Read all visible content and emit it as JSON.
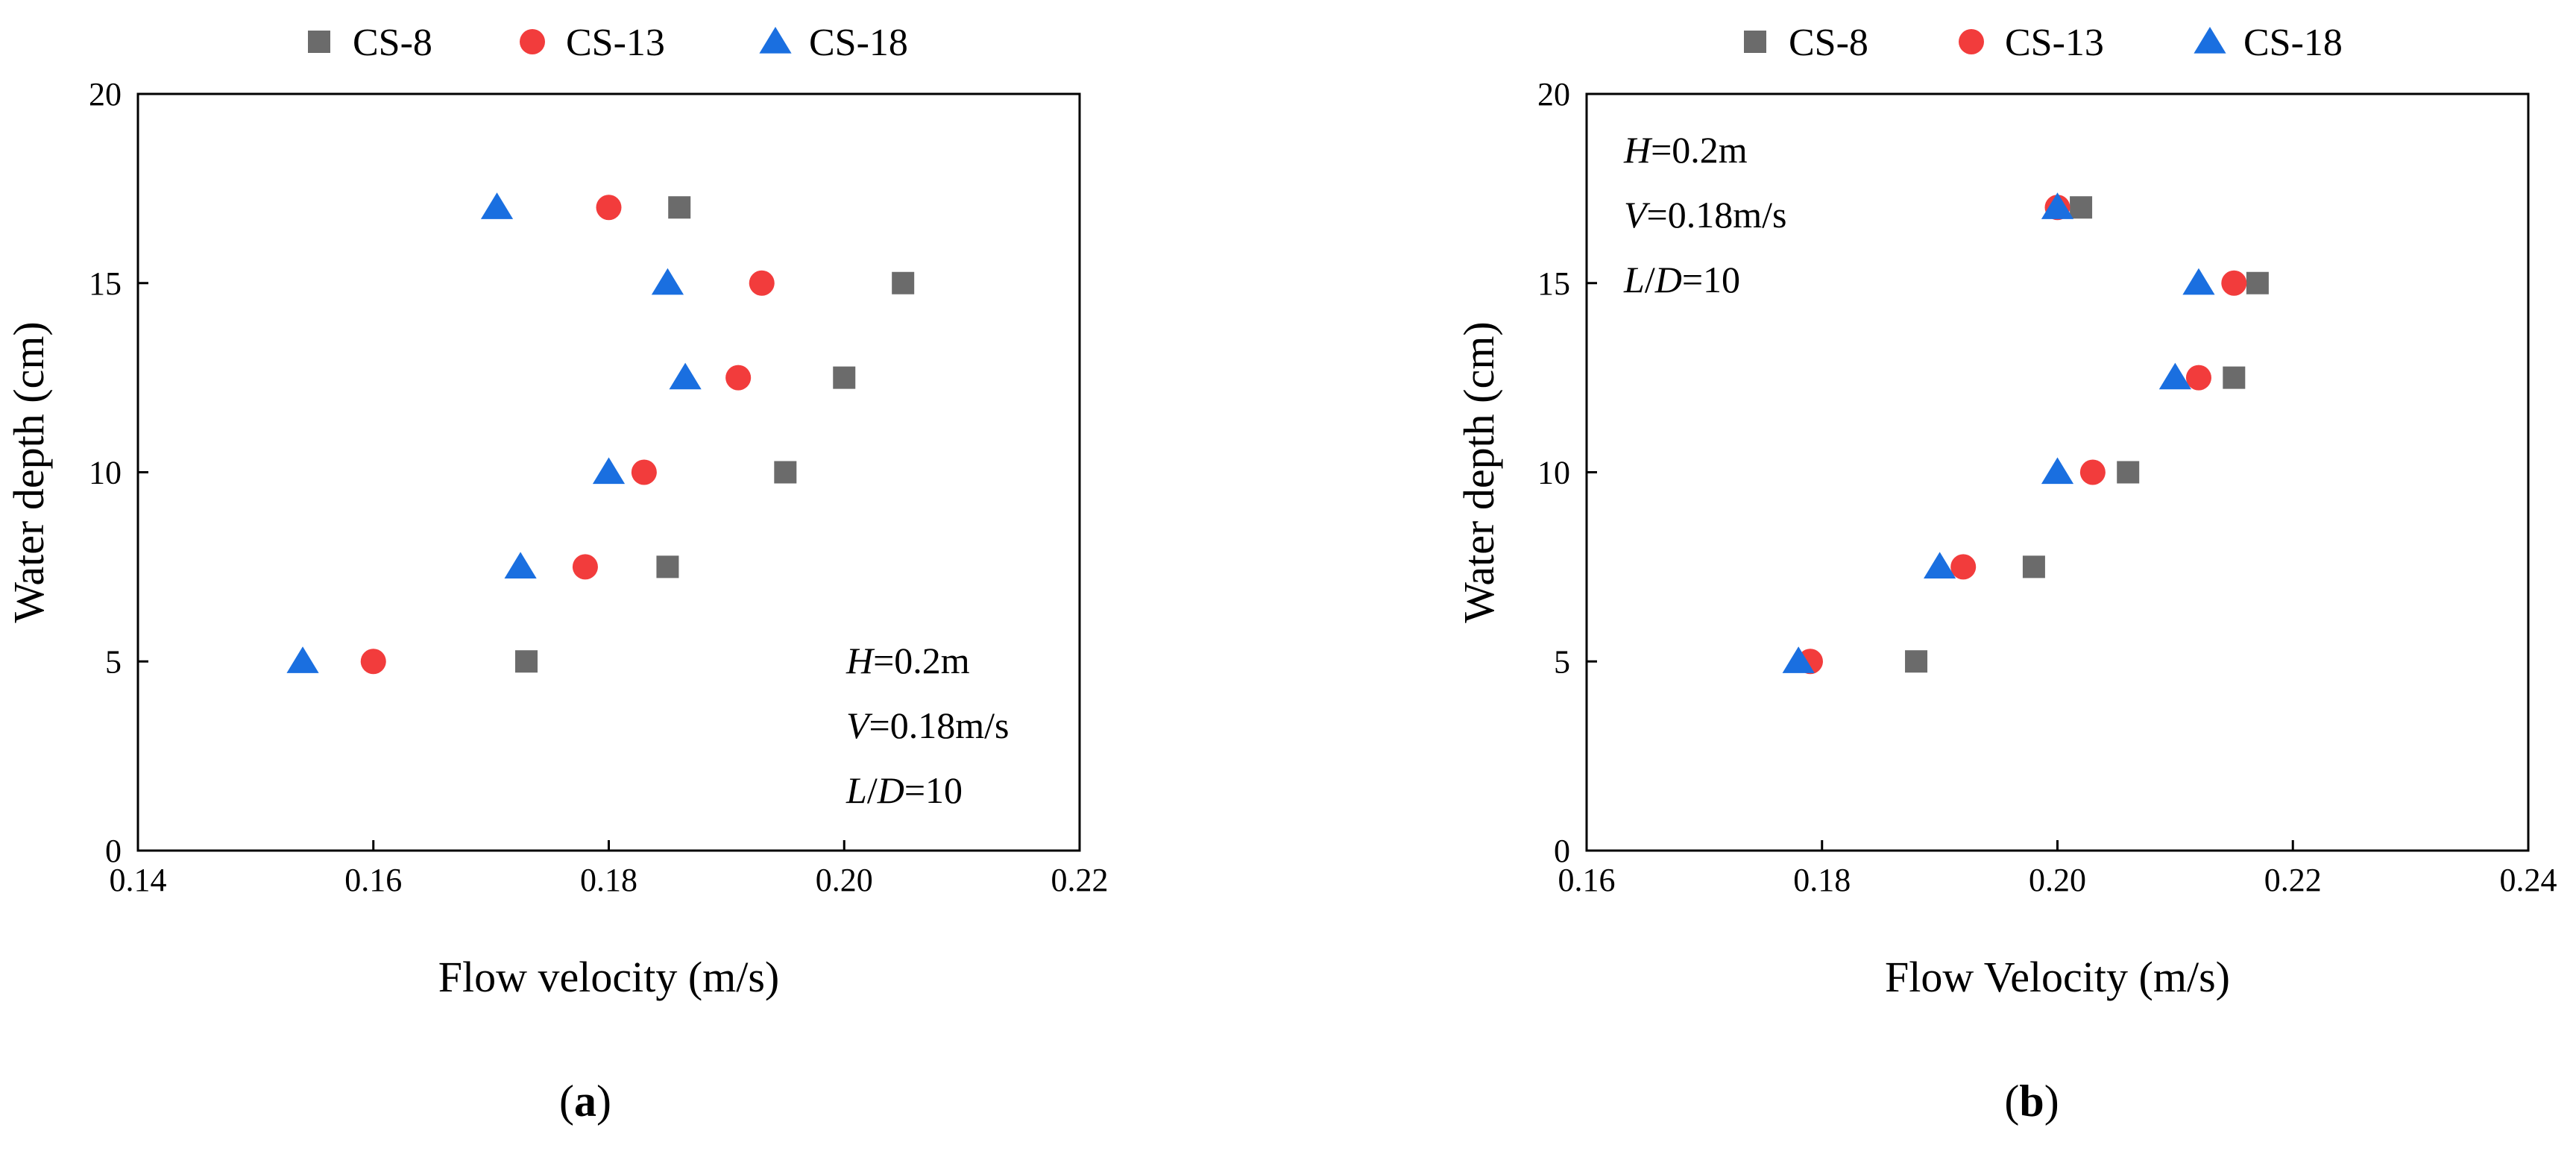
{
  "chart_data": [
    {
      "type": "scatter",
      "panel_label": "a",
      "xlabel": "Flow velocity (m/s)",
      "ylabel": "Water depth (cm)",
      "xlim": [
        0.14,
        0.22
      ],
      "ylim": [
        0,
        20
      ],
      "xticks": [
        "0.14",
        "0.16",
        "0.18",
        "0.20",
        "0.22"
      ],
      "yticks": [
        "0",
        "5",
        "10",
        "15",
        "20"
      ],
      "legend_position": "top-center",
      "annotation_position": "bottom-right",
      "annotation": [
        {
          "italic": "H",
          "rest": "=0.2m"
        },
        {
          "italic": "V",
          "rest": "=0.18m/s"
        },
        {
          "italic": "L",
          "slash": "/",
          "italic2": "D",
          "rest": "=10"
        }
      ],
      "series": [
        {
          "name": "CS-8",
          "marker": "square",
          "color": "#6b6b6b",
          "x": [
            0.173,
            0.185,
            0.195,
            0.2,
            0.205,
            0.186
          ],
          "y": [
            5,
            7.5,
            10,
            12.5,
            15,
            17
          ]
        },
        {
          "name": "CS-13",
          "marker": "circle",
          "color": "#f23c3c",
          "x": [
            0.16,
            0.178,
            0.183,
            0.191,
            0.193,
            0.18
          ],
          "y": [
            5,
            7.5,
            10,
            12.5,
            15,
            17
          ]
        },
        {
          "name": "CS-18",
          "marker": "triangle",
          "color": "#1a6fe0",
          "x": [
            0.154,
            0.1725,
            0.18,
            0.1865,
            0.185,
            0.1705
          ],
          "y": [
            5,
            7.5,
            10,
            12.5,
            15,
            17
          ]
        }
      ]
    },
    {
      "type": "scatter",
      "panel_label": "b",
      "xlabel": "Flow Velocity (m/s)",
      "ylabel": "Water depth (cm)",
      "xlim": [
        0.16,
        0.24
      ],
      "ylim": [
        0,
        20
      ],
      "xticks": [
        "0.16",
        "0.18",
        "0.20",
        "0.22",
        "0.24"
      ],
      "yticks": [
        "0",
        "5",
        "10",
        "15",
        "20"
      ],
      "legend_position": "top-center",
      "annotation_position": "top-left",
      "annotation": [
        {
          "italic": "H",
          "rest": "=0.2m"
        },
        {
          "italic": "V",
          "rest": "=0.18m/s"
        },
        {
          "italic": "L",
          "slash": "/",
          "italic2": "D",
          "rest": "=10"
        }
      ],
      "series": [
        {
          "name": "CS-8",
          "marker": "square",
          "color": "#6b6b6b",
          "x": [
            0.188,
            0.198,
            0.206,
            0.215,
            0.217,
            0.202
          ],
          "y": [
            5,
            7.5,
            10,
            12.5,
            15,
            17
          ]
        },
        {
          "name": "CS-13",
          "marker": "circle",
          "color": "#f23c3c",
          "x": [
            0.179,
            0.192,
            0.203,
            0.212,
            0.215,
            0.2
          ],
          "y": [
            5,
            7.5,
            10,
            12.5,
            15,
            17
          ]
        },
        {
          "name": "CS-18",
          "marker": "triangle",
          "color": "#1a6fe0",
          "x": [
            0.178,
            0.19,
            0.2,
            0.21,
            0.212,
            0.2
          ],
          "y": [
            5,
            7.5,
            10,
            12.5,
            15,
            17
          ]
        }
      ]
    }
  ]
}
